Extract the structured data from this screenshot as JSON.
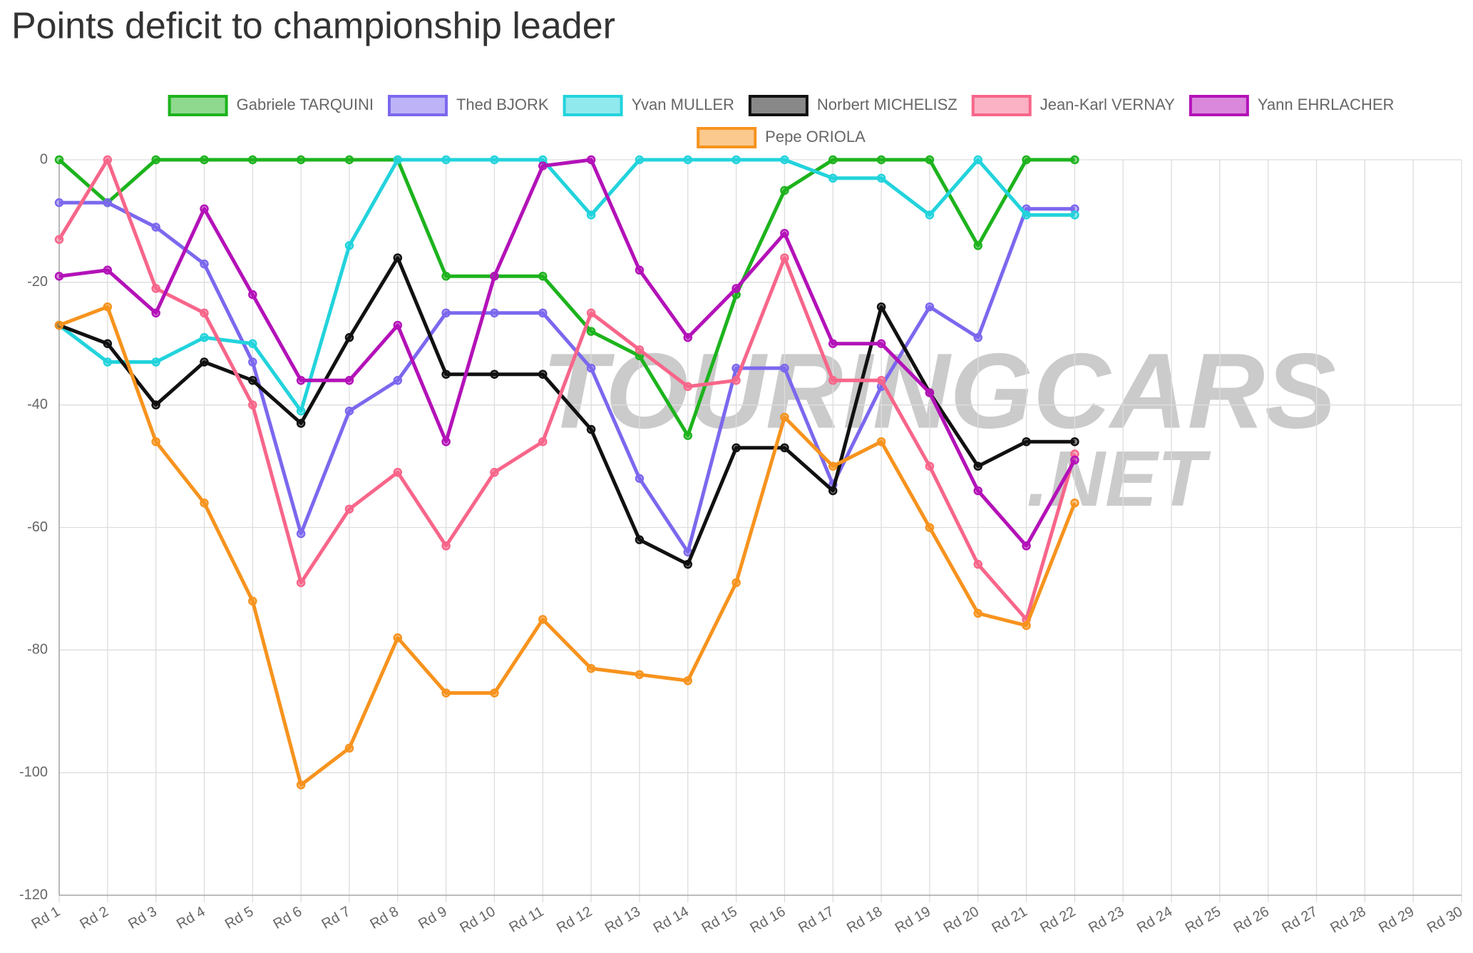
{
  "chart_data": {
    "type": "line",
    "title": "Points deficit to championship leader",
    "categories": [
      "Rd 1",
      "Rd 2",
      "Rd 3",
      "Rd 4",
      "Rd 5",
      "Rd 6",
      "Rd 7",
      "Rd 8",
      "Rd 9",
      "Rd 10",
      "Rd 11",
      "Rd 12",
      "Rd 13",
      "Rd 14",
      "Rd 15",
      "Rd 16",
      "Rd 17",
      "Rd 18",
      "Rd 19",
      "Rd 20",
      "Rd 21",
      "Rd 22",
      "Rd 23",
      "Rd 24",
      "Rd 25",
      "Rd 26",
      "Rd 27",
      "Rd 28",
      "Rd 29",
      "Rd 30"
    ],
    "series": [
      {
        "name": "Gabriele TARQUINI",
        "color": "#1db31d",
        "values": [
          0,
          -7,
          0,
          0,
          0,
          0,
          0,
          0,
          -19,
          -19,
          -19,
          -28,
          -32,
          -45,
          -22,
          -5,
          0,
          0,
          0,
          -14,
          0,
          0,
          null,
          null,
          null,
          null,
          null,
          null,
          null,
          null
        ]
      },
      {
        "name": "Thed BJORK",
        "color": "#7b68ee",
        "values": [
          -7,
          -7,
          -11,
          -17,
          -33,
          -61,
          -41,
          -36,
          -25,
          -25,
          -25,
          -34,
          -52,
          -64,
          -34,
          -34,
          -53,
          -37,
          -24,
          -29,
          -8,
          -8,
          null,
          null,
          null,
          null,
          null,
          null,
          null,
          null
        ]
      },
      {
        "name": "Yvan MULLER",
        "color": "#22d3dc",
        "values": [
          -27,
          -33,
          -33,
          -29,
          -30,
          -41,
          -14,
          0,
          0,
          0,
          0,
          -9,
          0,
          0,
          0,
          0,
          -3,
          -3,
          -9,
          0,
          -9,
          -9,
          null,
          null,
          null,
          null,
          null,
          null,
          null,
          null
        ]
      },
      {
        "name": "Norbert MICHELISZ",
        "color": "#111111",
        "values": [
          -27,
          -30,
          -40,
          -33,
          -36,
          -43,
          -29,
          -16,
          -35,
          -35,
          -35,
          -44,
          -62,
          -66,
          -47,
          -47,
          -54,
          -24,
          -38,
          -50,
          -46,
          -46,
          null,
          null,
          null,
          null,
          null,
          null,
          null,
          null
        ]
      },
      {
        "name": "Jean-Karl VERNAY",
        "color": "#f7668a",
        "values": [
          -13,
          0,
          -21,
          -25,
          -40,
          -69,
          -57,
          -51,
          -63,
          -51,
          -46,
          -25,
          -31,
          -37,
          -36,
          -16,
          -36,
          -36,
          -50,
          -66,
          -75,
          -48,
          null,
          null,
          null,
          null,
          null,
          null,
          null,
          null
        ]
      },
      {
        "name": "Yann EHRLACHER",
        "color": "#b312b8",
        "values": [
          -19,
          -18,
          -25,
          -8,
          -22,
          -36,
          -36,
          -27,
          -46,
          -19,
          -1,
          0,
          -18,
          -29,
          -21,
          -12,
          -30,
          -30,
          -38,
          -54,
          -63,
          -49,
          null,
          null,
          null,
          null,
          null,
          null,
          null,
          null
        ]
      },
      {
        "name": "Pepe ORIOLA",
        "color": "#f7931e",
        "values": [
          -27,
          -24,
          -46,
          -56,
          -72,
          -102,
          -96,
          -78,
          -87,
          -87,
          -75,
          -83,
          -84,
          -85,
          -69,
          -42,
          -50,
          -46,
          -60,
          -74,
          -76,
          -56,
          null,
          null,
          null,
          null,
          null,
          null,
          null,
          null
        ]
      }
    ],
    "ylim": [
      -120,
      0
    ],
    "yticks": [
      -120,
      -100,
      -80,
      -60,
      -40,
      -20,
      0
    ],
    "grid": true,
    "watermark": [
      "TOURINGCARS",
      ".NET"
    ]
  }
}
